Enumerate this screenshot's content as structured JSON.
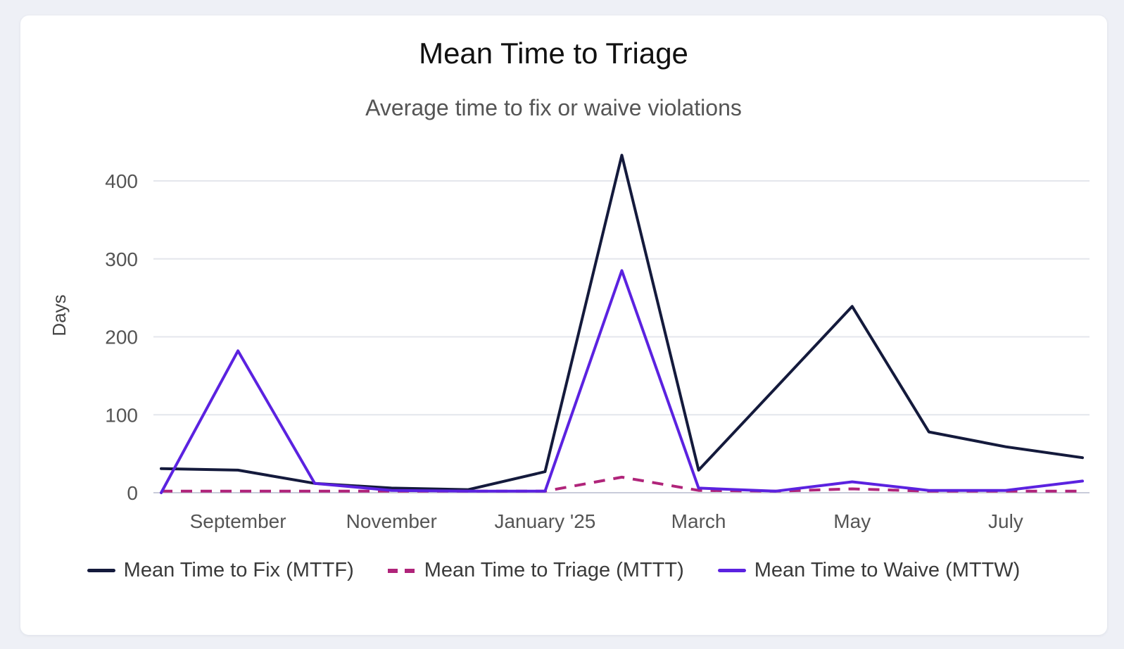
{
  "chart_data": {
    "type": "line",
    "title": "Mean Time to Triage",
    "subtitle": "Average time to fix or waive violations",
    "ylabel": "Days",
    "ylim": [
      0,
      430
    ],
    "yticks": [
      0,
      100,
      200,
      300,
      400
    ],
    "x": [
      "2024-08",
      "2024-09",
      "2024-10",
      "2024-11",
      "2024-12",
      "2025-01",
      "2025-02",
      "2025-03",
      "2025-04",
      "2025-05",
      "2025-06",
      "2025-07",
      "2025-08"
    ],
    "x_tick_labels": [
      {
        "index": 1,
        "label": "September"
      },
      {
        "index": 3,
        "label": "November"
      },
      {
        "index": 5,
        "label": "January '25"
      },
      {
        "index": 7,
        "label": "March"
      },
      {
        "index": 9,
        "label": "May"
      },
      {
        "index": 11,
        "label": "July"
      }
    ],
    "series": [
      {
        "name": "Mean Time to Fix (MTTF)",
        "color": "#141a3c",
        "dash": "solid",
        "values": [
          31,
          29,
          12,
          6,
          4,
          27,
          433,
          29,
          134,
          239,
          78,
          59,
          45
        ]
      },
      {
        "name": "Mean Time to Triage (MTTT)",
        "color": "#b0247a",
        "dash": "dashed",
        "values": [
          2,
          2,
          2,
          2,
          2,
          2,
          20,
          3,
          2,
          5,
          2,
          2,
          2
        ]
      },
      {
        "name": "Mean Time to Waive (MTTW)",
        "color": "#5b22e0",
        "dash": "solid",
        "values": [
          0,
          182,
          12,
          3,
          2,
          2,
          285,
          6,
          2,
          14,
          3,
          3,
          15
        ]
      }
    ],
    "grid": true,
    "legend_position": "bottom"
  }
}
